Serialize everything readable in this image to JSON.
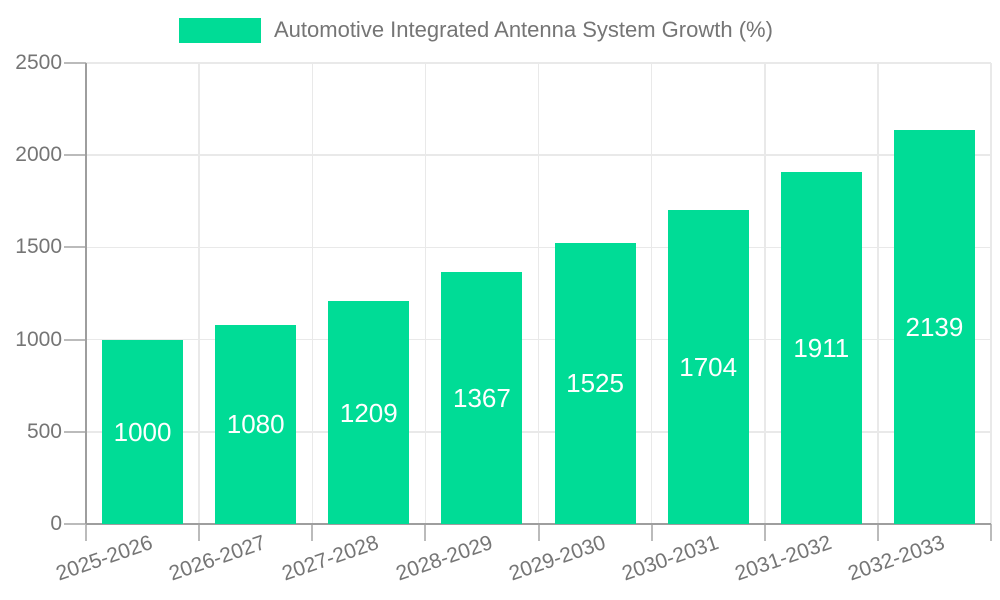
{
  "legend": {
    "label": "Automotive Integrated Antenna System Growth (%)"
  },
  "chart_data": {
    "type": "bar",
    "title": "Automotive Integrated Antenna System Growth (%)",
    "categories": [
      "2025-2026",
      "2026-2027",
      "2027-2028",
      "2028-2029",
      "2029-2030",
      "2030-2031",
      "2031-2032",
      "2032-2033"
    ],
    "values": [
      1000,
      1080,
      1209,
      1367,
      1525,
      1704,
      1911,
      2139
    ],
    "xlabel": "",
    "ylabel": "",
    "ylim": [
      0,
      2500
    ],
    "yticks": [
      0,
      500,
      1000,
      1500,
      2000,
      2500
    ],
    "grid": true,
    "legend_position": "top-center",
    "value_label_position": "inside-center",
    "colors": {
      "bar": "#00DC96",
      "value_label": "#FFFFFF",
      "axis_text": "#757575",
      "axis_line": "#9E9E9E",
      "tick_line": "#BBBBBB",
      "grid_line": "#E9E9E9",
      "background": "#FFFFFF"
    }
  }
}
